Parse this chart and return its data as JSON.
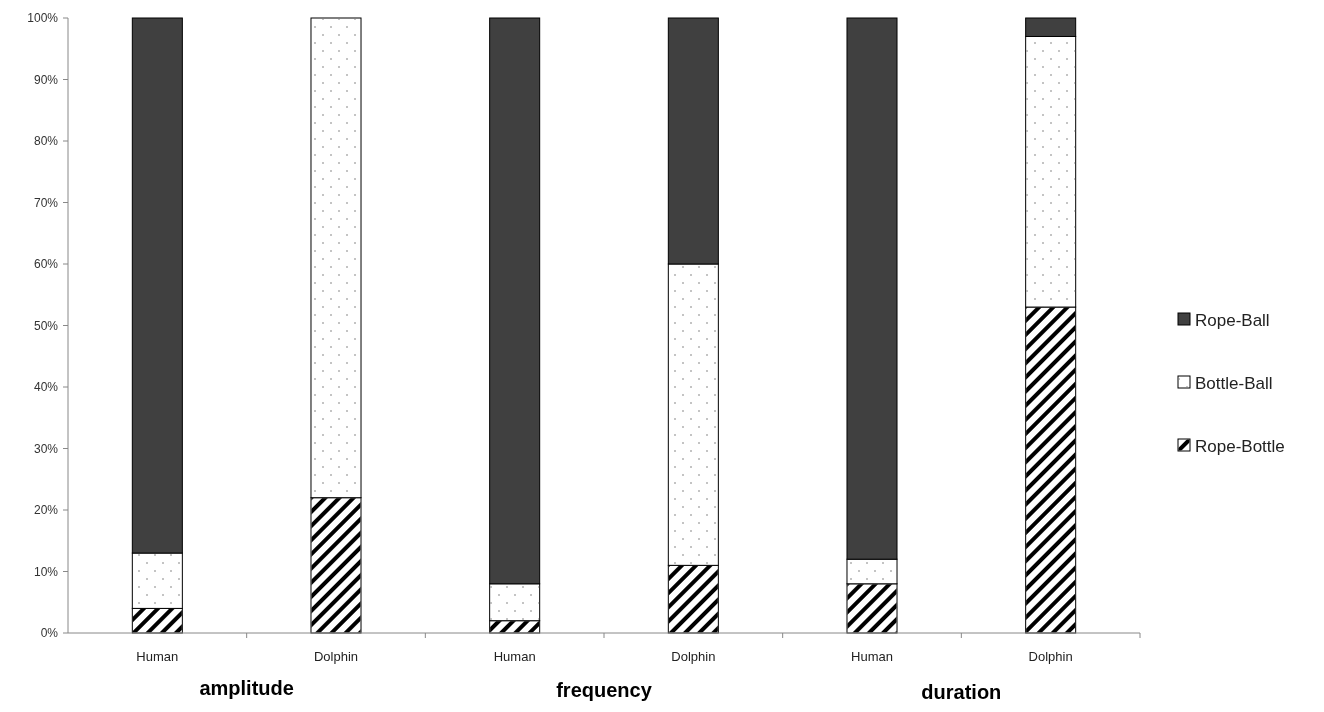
{
  "chart_data": {
    "type": "bar",
    "stacked": true,
    "categories": [
      "Human",
      "Dolphin",
      "Human",
      "Dolphin",
      "Human",
      "Dolphin"
    ],
    "series": [
      {
        "name": "Rope-Bottle",
        "color": "#ffffff",
        "values": [
          4,
          22,
          2,
          11,
          8,
          53
        ]
      },
      {
        "name": "Bottle-Ball",
        "color": "#ffffff",
        "values": [
          9,
          78,
          6,
          49,
          4,
          44
        ]
      },
      {
        "name": "Rope-Ball",
        "color": "#404040",
        "values": [
          87,
          0,
          92,
          40,
          88,
          3
        ]
      }
    ],
    "ylim": [
      0,
      100
    ],
    "yticks": [
      {
        "value": 0,
        "label": "0%"
      },
      {
        "value": 10,
        "label": "10%"
      },
      {
        "value": 20,
        "label": "20%"
      },
      {
        "value": 30,
        "label": "30%"
      },
      {
        "value": 40,
        "label": "40%"
      },
      {
        "value": 50,
        "label": "50%"
      },
      {
        "value": 60,
        "label": "60%"
      },
      {
        "value": 70,
        "label": "70%"
      },
      {
        "value": 80,
        "label": "80%"
      },
      {
        "value": 90,
        "label": "90%"
      },
      {
        "value": 100,
        "label": "100%"
      }
    ],
    "annotations": [
      "amplitude",
      "frequency",
      "duration"
    ],
    "legend": "right",
    "grid": false
  }
}
